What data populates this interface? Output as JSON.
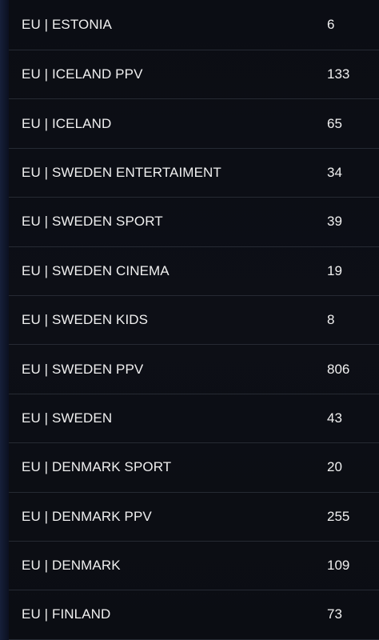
{
  "categories": [
    {
      "name": "EU | ESTONIA",
      "count": "6"
    },
    {
      "name": "EU | ICELAND PPV",
      "count": "133"
    },
    {
      "name": "EU | ICELAND",
      "count": "65"
    },
    {
      "name": "EU | SWEDEN ENTERTAIMENT",
      "count": "34"
    },
    {
      "name": "EU | SWEDEN SPORT",
      "count": "39"
    },
    {
      "name": "EU | SWEDEN CINEMA",
      "count": "19"
    },
    {
      "name": "EU | SWEDEN KIDS",
      "count": "8"
    },
    {
      "name": "EU | SWEDEN PPV",
      "count": "806"
    },
    {
      "name": "EU | SWEDEN",
      "count": "43"
    },
    {
      "name": "EU | DENMARK SPORT",
      "count": "20"
    },
    {
      "name": "EU | DENMARK PPV",
      "count": "255"
    },
    {
      "name": "EU | DENMARK",
      "count": "109"
    },
    {
      "name": "EU | FINLAND",
      "count": "73"
    }
  ]
}
